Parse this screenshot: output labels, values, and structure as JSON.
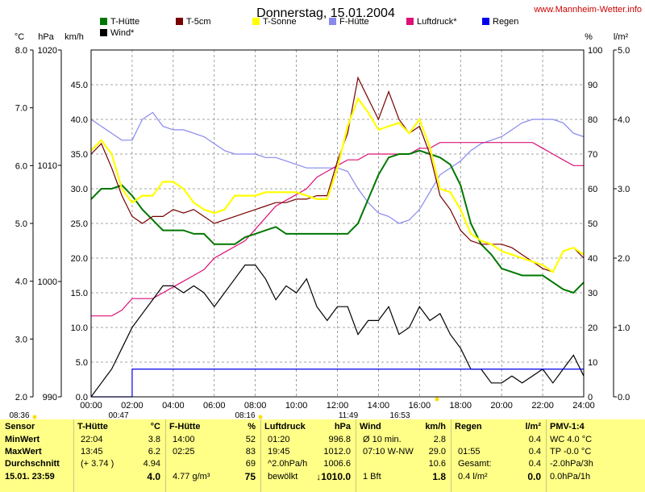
{
  "chart_data": {
    "type": "line",
    "title": "Donnerstag, 15.01.2004",
    "source_link": "www.Mannheim-Wetter.info",
    "axes": {
      "temp_c": {
        "unit": "°C",
        "ticks": [
          "8.0",
          "7.0",
          "6.0",
          "5.0",
          "4.0",
          "3.0",
          "2.0"
        ]
      },
      "pressure_hpa": {
        "unit": "hPa",
        "ticks": [
          "1020",
          "1010",
          "1000",
          "990"
        ]
      },
      "wind_kmh": {
        "unit": "km/h",
        "range": [
          0,
          50
        ],
        "ticks": [
          "45.0",
          "40.0",
          "35.0",
          "30.0",
          "25.0",
          "20.0",
          "15.0",
          "10.0",
          "5.0",
          "0.0"
        ]
      },
      "humidity_pct": {
        "unit": "%",
        "range": [
          0,
          100
        ],
        "ticks": [
          "100",
          "90",
          "80",
          "70",
          "60",
          "50",
          "40",
          "30",
          "20",
          "10",
          "0"
        ]
      },
      "rain_lm2": {
        "unit": "l/m²",
        "ticks": [
          "5.0",
          "4.0",
          "3.0",
          "2.0",
          "1.0",
          "0.0"
        ]
      },
      "x_ticks": [
        "00:00",
        "02:00",
        "04:00",
        "06:00",
        "08:00",
        "10:00",
        "12:00",
        "14:00",
        "16:00",
        "18:00",
        "20:00",
        "22:00",
        "24:00"
      ]
    },
    "x_hours": [
      0,
      0.5,
      1,
      1.5,
      2,
      2.5,
      3,
      3.5,
      4,
      4.5,
      5,
      5.5,
      6,
      6.5,
      7,
      7.5,
      8,
      8.5,
      9,
      9.5,
      10,
      10.5,
      11,
      11.5,
      12,
      12.5,
      13,
      13.5,
      14,
      14.5,
      15,
      15.5,
      16,
      16.5,
      17,
      17.5,
      18,
      18.5,
      19,
      19.5,
      20,
      20.5,
      21,
      21.5,
      22,
      22.5,
      23,
      23.5,
      24
    ],
    "series": [
      {
        "name": "T-Hütte",
        "color": "#007700",
        "values": [
          28.5,
          30,
          30,
          30.5,
          29,
          27,
          25.5,
          24,
          24,
          24,
          23.5,
          23.5,
          22,
          22,
          22,
          23,
          23.5,
          24,
          24.5,
          23.5,
          23.5,
          23.5,
          23.5,
          23.5,
          23.5,
          23.5,
          25,
          28.5,
          32,
          34.5,
          35,
          35,
          35.5,
          35,
          34.5,
          33.5,
          30.5,
          25,
          22,
          20.5,
          18.5,
          18,
          17.5,
          17.5,
          17.5,
          16.5,
          15.5,
          15,
          16.5
        ]
      },
      {
        "name": "T-5cm",
        "color": "#770000",
        "values": [
          35,
          36.5,
          33,
          29,
          26,
          25,
          26,
          26,
          27,
          26.5,
          27,
          26,
          25,
          25.5,
          26,
          26.5,
          27,
          27.5,
          28,
          28,
          28.5,
          28.5,
          29,
          29,
          34,
          38,
          46,
          43,
          40,
          44,
          40,
          38,
          39,
          35,
          29,
          27,
          24,
          22.5,
          22,
          22,
          22,
          21.5,
          20.5,
          19.5,
          18.5,
          18,
          21,
          21.5,
          20
        ]
      },
      {
        "name": "T-Sonne",
        "color": "#ffff00",
        "values": [
          35.5,
          37,
          35,
          30,
          28,
          29,
          29,
          31,
          31,
          30,
          28,
          27,
          26.5,
          27,
          29,
          29,
          29,
          29.5,
          29.5,
          29.5,
          29.5,
          29,
          28.5,
          28.5,
          33,
          39,
          43,
          41,
          38.5,
          39,
          39.5,
          38,
          40,
          36,
          30,
          29.5,
          27,
          23.5,
          22.5,
          22,
          21,
          20.5,
          20,
          19.5,
          19,
          18,
          21,
          21.5,
          20.5
        ]
      },
      {
        "name": "F-Hütte",
        "color": "#8888ee",
        "values": [
          80,
          78,
          76,
          74,
          74,
          80,
          82,
          78,
          77,
          77,
          76,
          75,
          73,
          71,
          70,
          70,
          70,
          69,
          69,
          68,
          67,
          66,
          66,
          66,
          66,
          65,
          60,
          56,
          53,
          52,
          50,
          51,
          54,
          59,
          64,
          66,
          68,
          71,
          73,
          74,
          75,
          77,
          79,
          80,
          80,
          80,
          79,
          76,
          75
        ]
      },
      {
        "name": "Luftdruck*",
        "color": "#dd1177",
        "values": [
          997,
          997,
          997,
          997.5,
          998.5,
          998.5,
          998.5,
          999,
          999.5,
          1000,
          1000.5,
          1001,
          1002,
          1002.5,
          1003,
          1003.5,
          1004.5,
          1005.5,
          1006.5,
          1007,
          1007.5,
          1008,
          1009,
          1009.5,
          1010,
          1010.5,
          1010.5,
          1011,
          1011,
          1011,
          1011,
          1011,
          1011.5,
          1011.5,
          1012,
          1012,
          1012,
          1012,
          1012,
          1012,
          1012,
          1012,
          1012,
          1012,
          1011.5,
          1011,
          1010.5,
          1010,
          1010
        ]
      },
      {
        "name": "Wind*",
        "color": "#000000",
        "values": [
          0,
          2,
          4,
          7,
          10,
          12,
          14,
          16,
          16,
          15,
          16,
          15,
          13,
          15,
          17,
          19,
          19,
          17,
          14,
          16,
          15,
          17,
          13,
          11,
          13,
          13,
          9,
          11,
          11,
          13,
          9,
          10,
          13,
          11,
          12,
          9,
          7,
          4,
          4,
          2,
          2,
          3,
          2,
          3,
          4,
          2,
          4,
          6,
          3
        ]
      },
      {
        "name": "Regen",
        "color": "#0000ee",
        "values": [
          0,
          0,
          0,
          0,
          0.4,
          0.4,
          0.4,
          0.4,
          0.4,
          0.4,
          0.4,
          0.4,
          0.4,
          0.4,
          0.4,
          0.4,
          0.4,
          0.4,
          0.4,
          0.4,
          0.4,
          0.4,
          0.4,
          0.4,
          0.4,
          0.4,
          0.4,
          0.4,
          0.4,
          0.4,
          0.4,
          0.4,
          0.4,
          0.4,
          0.4,
          0.4,
          0.4,
          0.4,
          0.4,
          0.4,
          0.4,
          0.4,
          0.4,
          0.4,
          0.4,
          0.4,
          0.4,
          0.4,
          0.4
        ]
      }
    ],
    "time_markers": [
      {
        "label": "08:36"
      },
      {
        "label": "00:47"
      },
      {
        "label": "08:16"
      },
      {
        "label": "11:49"
      },
      {
        "label": "16:53"
      }
    ],
    "summary": {
      "row_labels": [
        "Sensor",
        "MinWert",
        "MaxWert",
        "Durchschnitt",
        "15.01. 23:59"
      ],
      "columns": [
        {
          "header": [
            "T-Hütte",
            "°C"
          ],
          "rows": [
            [
              "22:04",
              "3.8"
            ],
            [
              "13:45",
              "6.2"
            ],
            [
              "(+ 3.74 )",
              "4.94"
            ],
            [
              "",
              "4.0"
            ]
          ]
        },
        {
          "header": [
            "F-Hütte",
            "%"
          ],
          "rows": [
            [
              "14:00",
              "52"
            ],
            [
              "02:25",
              "83"
            ],
            [
              "",
              "69"
            ],
            [
              "4.77 g/m³",
              "75"
            ]
          ]
        },
        {
          "header": [
            "Luftdruck",
            "hPa"
          ],
          "rows": [
            [
              "01:20",
              "996.8"
            ],
            [
              "19:45",
              "1012.0"
            ],
            [
              "^2.0hPa/h",
              "1006.6"
            ],
            [
              "bewölkt",
              "↓1010.0"
            ]
          ]
        },
        {
          "header": [
            "Wind",
            "km/h"
          ],
          "rows": [
            [
              "Ø 10 min.",
              "2.8"
            ],
            [
              "07:10     W-NW",
              "29.0"
            ],
            [
              "",
              "10.6"
            ],
            [
              "1 Bft",
              "1.8"
            ]
          ]
        },
        {
          "header": [
            "Regen",
            "l/m²"
          ],
          "rows": [
            [
              "",
              "0.4"
            ],
            [
              "01:55",
              "0.4"
            ],
            [
              "Gesamt:",
              "0.4"
            ],
            [
              "0.4 l/m²",
              "0.0"
            ]
          ]
        },
        {
          "header": [
            "PMV-1:4",
            ""
          ],
          "rows": [
            [
              "WC 4.0 °C",
              ""
            ],
            [
              "TP -0.0 °C",
              ""
            ],
            [
              "-2.0hPa/3h",
              ""
            ],
            [
              "0.0hPa/1h",
              ""
            ]
          ]
        }
      ]
    }
  }
}
